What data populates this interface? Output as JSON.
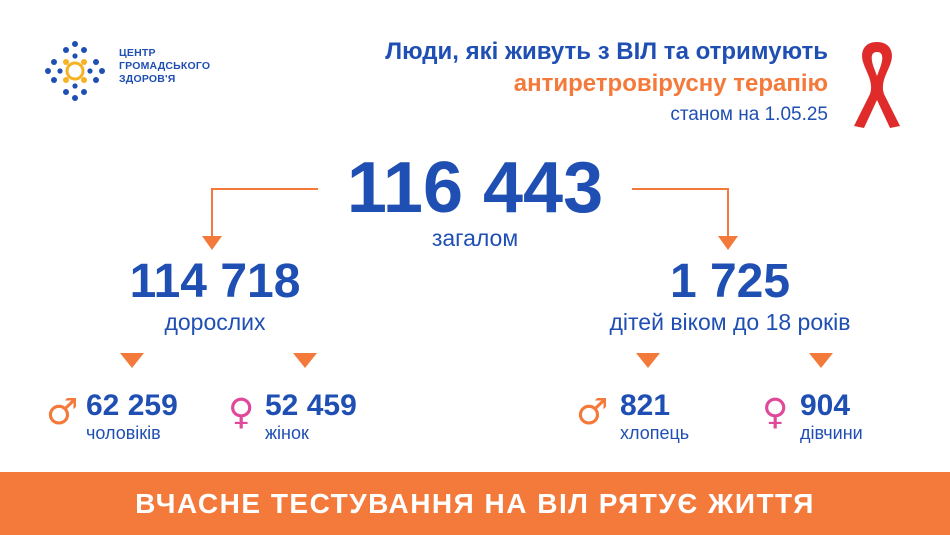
{
  "logo": {
    "line1": "ЦЕНТР",
    "line2": "ГРОМАДСЬКОГО",
    "line3": "ЗДОРОВ'Я"
  },
  "header": {
    "title_line1": "Люди, які живуть з ВІЛ та отримують",
    "title_line2": "антиретровірусну терапію",
    "date": "станом на 1.05.25"
  },
  "total": {
    "value": "116 443",
    "label": "загалом"
  },
  "adults": {
    "value": "114 718",
    "label": "дорослих",
    "men": {
      "value": "62 259",
      "label": "чоловіків"
    },
    "women": {
      "value": "52 459",
      "label": "жінок"
    }
  },
  "children": {
    "value": "1 725",
    "label": "дітей віком до 18 років",
    "boys": {
      "value": "821",
      "label": "хлопець"
    },
    "girls": {
      "value": "904",
      "label": "дівчини"
    }
  },
  "symbols": {
    "male": "♂",
    "female": "♀"
  },
  "banner": {
    "text": "ВЧАСНЕ ТЕСТУВАННЯ НА ВІЛ РЯТУЄ ЖИТТЯ"
  },
  "colors": {
    "blue": "#1f4fb3",
    "orange": "#f47a3c",
    "pink": "#e0489a",
    "red": "#e02b2b"
  }
}
